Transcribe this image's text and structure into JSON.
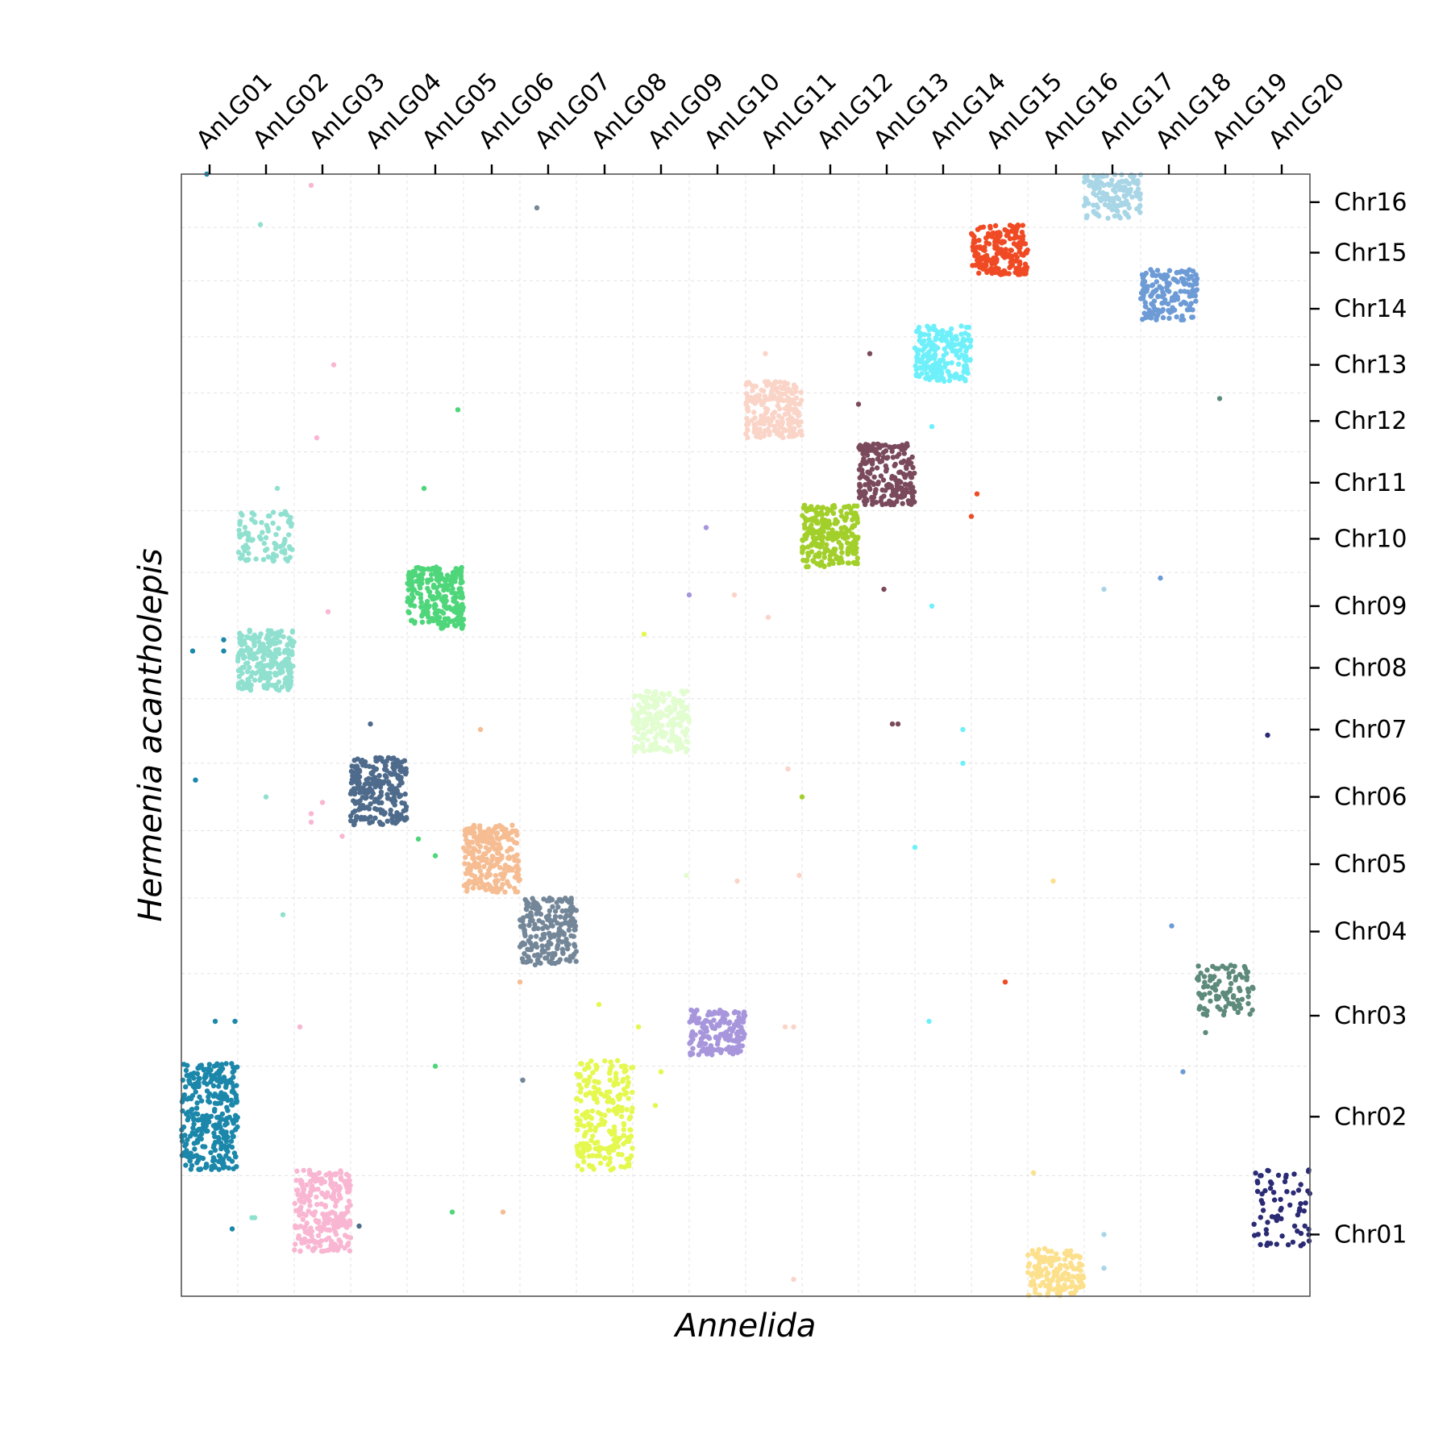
{
  "chart_data": {
    "type": "scatter",
    "title": "",
    "xlabel": "Annelida",
    "ylabel": "Hermenia acantholepis",
    "x_tick_position": "top",
    "y_tick_position": "right",
    "grid": true,
    "x_categories": [
      "AnLG01",
      "AnLG02",
      "AnLG03",
      "AnLG04",
      "AnLG05",
      "AnLG06",
      "AnLG07",
      "AnLG08",
      "AnLG09",
      "AnLG10",
      "AnLG11",
      "AnLG12",
      "AnLG13",
      "AnLG14",
      "AnLG15",
      "AnLG16",
      "AnLG17",
      "AnLG18",
      "AnLG19",
      "AnLG20"
    ],
    "y_categories": [
      "Chr01",
      "Chr02",
      "Chr03",
      "Chr04",
      "Chr05",
      "Chr06",
      "Chr07",
      "Chr08",
      "Chr09",
      "Chr10",
      "Chr11",
      "Chr12",
      "Chr13",
      "Chr14",
      "Chr15",
      "Chr16"
    ],
    "xlim": [
      0,
      20
    ],
    "ylim": [
      0,
      20
    ],
    "x_tick_values": [
      0.5,
      1.5,
      2.5,
      3.5,
      4.5,
      5.5,
      6.5,
      7.5,
      8.5,
      9.5,
      10.5,
      11.5,
      12.5,
      13.5,
      14.5,
      15.5,
      16.5,
      17.5,
      18.5,
      19.5
    ],
    "y_tick_values": [
      1.1,
      3.2,
      5.0,
      6.5,
      7.7,
      8.9,
      10.1,
      11.2,
      12.3,
      13.5,
      14.5,
      15.6,
      16.6,
      17.6,
      18.6,
      19.5
    ],
    "clusters": [
      {
        "anlg": "AnLG01",
        "chr": "Chr02",
        "color": "#1b87aa",
        "x": [
          0.0,
          1.0
        ],
        "y": [
          2.25,
          4.15
        ],
        "n": 320
      },
      {
        "anlg": "AnLG02",
        "chr": "Chr08",
        "color": "#90e0d0",
        "x": [
          1.0,
          2.0
        ],
        "y": [
          10.8,
          11.9
        ],
        "n": 240
      },
      {
        "anlg": "AnLG02",
        "chr": "Chr10",
        "color": "#90e0d0",
        "x": [
          1.0,
          2.0
        ],
        "y": [
          13.1,
          14.0
        ],
        "n": 90
      },
      {
        "anlg": "AnLG03",
        "chr": "Chr01",
        "color": "#f9b6d2",
        "x": [
          2.0,
          3.0
        ],
        "y": [
          0.8,
          2.25
        ],
        "n": 260
      },
      {
        "anlg": "AnLG04",
        "chr": "Chr06",
        "color": "#4e6b8c",
        "x": [
          3.0,
          4.0
        ],
        "y": [
          8.4,
          9.6
        ],
        "n": 240
      },
      {
        "anlg": "AnLG05",
        "chr": "Chr09",
        "color": "#4fd67a",
        "x": [
          4.0,
          5.0
        ],
        "y": [
          11.9,
          13.0
        ],
        "n": 240
      },
      {
        "anlg": "AnLG06",
        "chr": "Chr05",
        "color": "#f6bd93",
        "x": [
          5.0,
          6.0
        ],
        "y": [
          7.2,
          8.4
        ],
        "n": 240
      },
      {
        "anlg": "AnLG07",
        "chr": "Chr04",
        "color": "#748799",
        "x": [
          6.0,
          7.0
        ],
        "y": [
          5.9,
          7.1
        ],
        "n": 220
      },
      {
        "anlg": "AnLG08",
        "chr": "Chr02",
        "color": "#e4f84e",
        "x": [
          7.0,
          8.0
        ],
        "y": [
          2.25,
          4.2
        ],
        "n": 240
      },
      {
        "anlg": "AnLG09",
        "chr": "Chr07",
        "color": "#e2fdd0",
        "x": [
          8.0,
          9.0
        ],
        "y": [
          9.7,
          10.8
        ],
        "n": 200
      },
      {
        "anlg": "AnLG10",
        "chr": "Chr03",
        "color": "#a796dc",
        "x": [
          9.0,
          10.0
        ],
        "y": [
          4.3,
          5.1
        ],
        "n": 180
      },
      {
        "anlg": "AnLG11",
        "chr": "Chr12",
        "color": "#fbd4c8",
        "x": [
          10.0,
          11.0
        ],
        "y": [
          15.3,
          16.3
        ],
        "n": 220
      },
      {
        "anlg": "AnLG12",
        "chr": "Chr10",
        "color": "#a3cf2a",
        "x": [
          11.0,
          12.0
        ],
        "y": [
          13.0,
          14.1
        ],
        "n": 240
      },
      {
        "anlg": "AnLG13",
        "chr": "Chr11",
        "color": "#7a4a5c",
        "x": [
          12.0,
          13.0
        ],
        "y": [
          14.1,
          15.2
        ],
        "n": 220
      },
      {
        "anlg": "AnLG14",
        "chr": "Chr13",
        "color": "#6ef0fb",
        "x": [
          13.0,
          14.0
        ],
        "y": [
          16.3,
          17.3
        ],
        "n": 200
      },
      {
        "anlg": "AnLG15",
        "chr": "Chr15",
        "color": "#f04a24",
        "x": [
          14.0,
          15.0
        ],
        "y": [
          18.2,
          19.1
        ],
        "n": 200
      },
      {
        "anlg": "AnLG16",
        "chr": "Chr01",
        "color": "#fde08c",
        "x": [
          15.0,
          16.0
        ],
        "y": [
          0.0,
          0.85
        ],
        "n": 150
      },
      {
        "anlg": "AnLG17",
        "chr": "Chr16",
        "color": "#a8d6e6",
        "x": [
          16.0,
          17.0
        ],
        "y": [
          19.2,
          20.0
        ],
        "n": 150
      },
      {
        "anlg": "AnLG18",
        "chr": "Chr14",
        "color": "#6d9bd6",
        "x": [
          17.0,
          18.0
        ],
        "y": [
          17.4,
          18.3
        ],
        "n": 160
      },
      {
        "anlg": "AnLG19",
        "chr": "Chr03",
        "color": "#5d8a7a",
        "x": [
          18.0,
          19.0
        ],
        "y": [
          5.0,
          5.9
        ],
        "n": 100
      },
      {
        "anlg": "AnLG20",
        "chr": "Chr01",
        "color": "#2b2b75",
        "x": [
          19.0,
          20.0
        ],
        "y": [
          0.9,
          2.25
        ],
        "n": 70
      }
    ],
    "outliers": [
      {
        "x": 0.45,
        "y": 20.0,
        "color": "#1b87aa"
      },
      {
        "x": 2.3,
        "y": 19.8,
        "color": "#f9b6d2"
      },
      {
        "x": 1.4,
        "y": 19.1,
        "color": "#90e0d0"
      },
      {
        "x": 6.3,
        "y": 19.4,
        "color": "#748799"
      },
      {
        "x": 2.7,
        "y": 16.6,
        "color": "#f9b6d2"
      },
      {
        "x": 2.4,
        "y": 15.3,
        "color": "#f9b6d2"
      },
      {
        "x": 1.7,
        "y": 14.4,
        "color": "#90e0d0"
      },
      {
        "x": 4.9,
        "y": 15.8,
        "color": "#4fd67a"
      },
      {
        "x": 4.3,
        "y": 14.4,
        "color": "#4fd67a"
      },
      {
        "x": 2.6,
        "y": 12.2,
        "color": "#f9b6d2"
      },
      {
        "x": 0.2,
        "y": 11.5,
        "color": "#1b87aa"
      },
      {
        "x": 0.75,
        "y": 11.5,
        "color": "#1b87aa"
      },
      {
        "x": 0.75,
        "y": 11.7,
        "color": "#1b87aa"
      },
      {
        "x": 3.35,
        "y": 10.2,
        "color": "#4e6b8c"
      },
      {
        "x": 5.3,
        "y": 10.1,
        "color": "#f6bd93"
      },
      {
        "x": 0.25,
        "y": 9.2,
        "color": "#1b87aa"
      },
      {
        "x": 2.5,
        "y": 8.8,
        "color": "#f9b6d2"
      },
      {
        "x": 2.3,
        "y": 8.6,
        "color": "#f9b6d2"
      },
      {
        "x": 2.3,
        "y": 8.45,
        "color": "#f9b6d2"
      },
      {
        "x": 2.85,
        "y": 8.2,
        "color": "#f9b6d2"
      },
      {
        "x": 4.2,
        "y": 8.15,
        "color": "#4fd67a"
      },
      {
        "x": 4.5,
        "y": 7.85,
        "color": "#4fd67a"
      },
      {
        "x": 1.8,
        "y": 6.8,
        "color": "#90e0d0"
      },
      {
        "x": 6.0,
        "y": 5.6,
        "color": "#f6bd93"
      },
      {
        "x": 7.4,
        "y": 5.2,
        "color": "#e4f84e"
      },
      {
        "x": 0.6,
        "y": 4.9,
        "color": "#1b87aa"
      },
      {
        "x": 0.95,
        "y": 4.9,
        "color": "#1b87aa"
      },
      {
        "x": 2.1,
        "y": 4.8,
        "color": "#f9b6d2"
      },
      {
        "x": 4.5,
        "y": 4.1,
        "color": "#4fd67a"
      },
      {
        "x": 6.05,
        "y": 3.85,
        "color": "#748799"
      },
      {
        "x": 8.4,
        "y": 3.4,
        "color": "#e4f84e"
      },
      {
        "x": 8.5,
        "y": 4.0,
        "color": "#e4f84e"
      },
      {
        "x": 8.1,
        "y": 4.8,
        "color": "#e4f84e"
      },
      {
        "x": 8.2,
        "y": 11.8,
        "color": "#e4f84e"
      },
      {
        "x": 8.95,
        "y": 7.5,
        "color": "#e2fdd0"
      },
      {
        "x": 9.85,
        "y": 7.4,
        "color": "#fbd4c8"
      },
      {
        "x": 10.7,
        "y": 4.8,
        "color": "#fbd4c8"
      },
      {
        "x": 10.85,
        "y": 4.8,
        "color": "#fbd4c8"
      },
      {
        "x": 9.8,
        "y": 12.5,
        "color": "#fbd4c8"
      },
      {
        "x": 10.4,
        "y": 12.1,
        "color": "#fbd4c8"
      },
      {
        "x": 10.35,
        "y": 16.8,
        "color": "#fbd4c8"
      },
      {
        "x": 10.75,
        "y": 9.4,
        "color": "#fbd4c8"
      },
      {
        "x": 10.95,
        "y": 7.5,
        "color": "#fbd4c8"
      },
      {
        "x": 11.0,
        "y": 8.9,
        "color": "#a3cf2a"
      },
      {
        "x": 9.3,
        "y": 13.7,
        "color": "#a796dc"
      },
      {
        "x": 9.0,
        "y": 12.5,
        "color": "#a796dc"
      },
      {
        "x": 12.2,
        "y": 16.8,
        "color": "#7a4a5c"
      },
      {
        "x": 12.0,
        "y": 15.9,
        "color": "#7a4a5c"
      },
      {
        "x": 12.45,
        "y": 12.6,
        "color": "#7a4a5c"
      },
      {
        "x": 12.6,
        "y": 10.2,
        "color": "#7a4a5c"
      },
      {
        "x": 12.7,
        "y": 10.2,
        "color": "#7a4a5c"
      },
      {
        "x": 13.3,
        "y": 15.5,
        "color": "#6ef0fb"
      },
      {
        "x": 13.3,
        "y": 12.3,
        "color": "#6ef0fb"
      },
      {
        "x": 13.0,
        "y": 8.0,
        "color": "#6ef0fb"
      },
      {
        "x": 13.85,
        "y": 10.1,
        "color": "#6ef0fb"
      },
      {
        "x": 13.85,
        "y": 9.5,
        "color": "#6ef0fb"
      },
      {
        "x": 13.25,
        "y": 4.9,
        "color": "#6ef0fb"
      },
      {
        "x": 14.1,
        "y": 14.3,
        "color": "#f04a24"
      },
      {
        "x": 14.0,
        "y": 13.9,
        "color": "#f04a24"
      },
      {
        "x": 14.6,
        "y": 5.6,
        "color": "#f04a24"
      },
      {
        "x": 15.45,
        "y": 7.4,
        "color": "#fde08c"
      },
      {
        "x": 15.1,
        "y": 2.2,
        "color": "#fde08c"
      },
      {
        "x": 16.35,
        "y": 12.6,
        "color": "#a8d6e6"
      },
      {
        "x": 16.35,
        "y": 1.1,
        "color": "#a8d6e6"
      },
      {
        "x": 16.35,
        "y": 0.5,
        "color": "#a8d6e6"
      },
      {
        "x": 17.35,
        "y": 12.8,
        "color": "#6d9bd6"
      },
      {
        "x": 17.55,
        "y": 6.6,
        "color": "#6d9bd6"
      },
      {
        "x": 17.75,
        "y": 4.0,
        "color": "#6d9bd6"
      },
      {
        "x": 18.4,
        "y": 16.0,
        "color": "#5d8a7a"
      },
      {
        "x": 18.15,
        "y": 4.7,
        "color": "#5d8a7a"
      },
      {
        "x": 19.25,
        "y": 10.0,
        "color": "#2b2b75"
      },
      {
        "x": 0.9,
        "y": 1.2,
        "color": "#1b87aa"
      },
      {
        "x": 1.25,
        "y": 1.4,
        "color": "#90e0d0"
      },
      {
        "x": 1.3,
        "y": 1.4,
        "color": "#90e0d0"
      },
      {
        "x": 3.15,
        "y": 1.25,
        "color": "#4e6b8c"
      },
      {
        "x": 4.8,
        "y": 1.5,
        "color": "#4fd67a"
      },
      {
        "x": 5.7,
        "y": 1.5,
        "color": "#f6bd93"
      },
      {
        "x": 10.85,
        "y": 0.3,
        "color": "#fbd4c8"
      },
      {
        "x": 6.05,
        "y": 3.85,
        "color": "#748799"
      },
      {
        "x": 1.5,
        "y": 8.9,
        "color": "#90e0d0"
      }
    ]
  }
}
